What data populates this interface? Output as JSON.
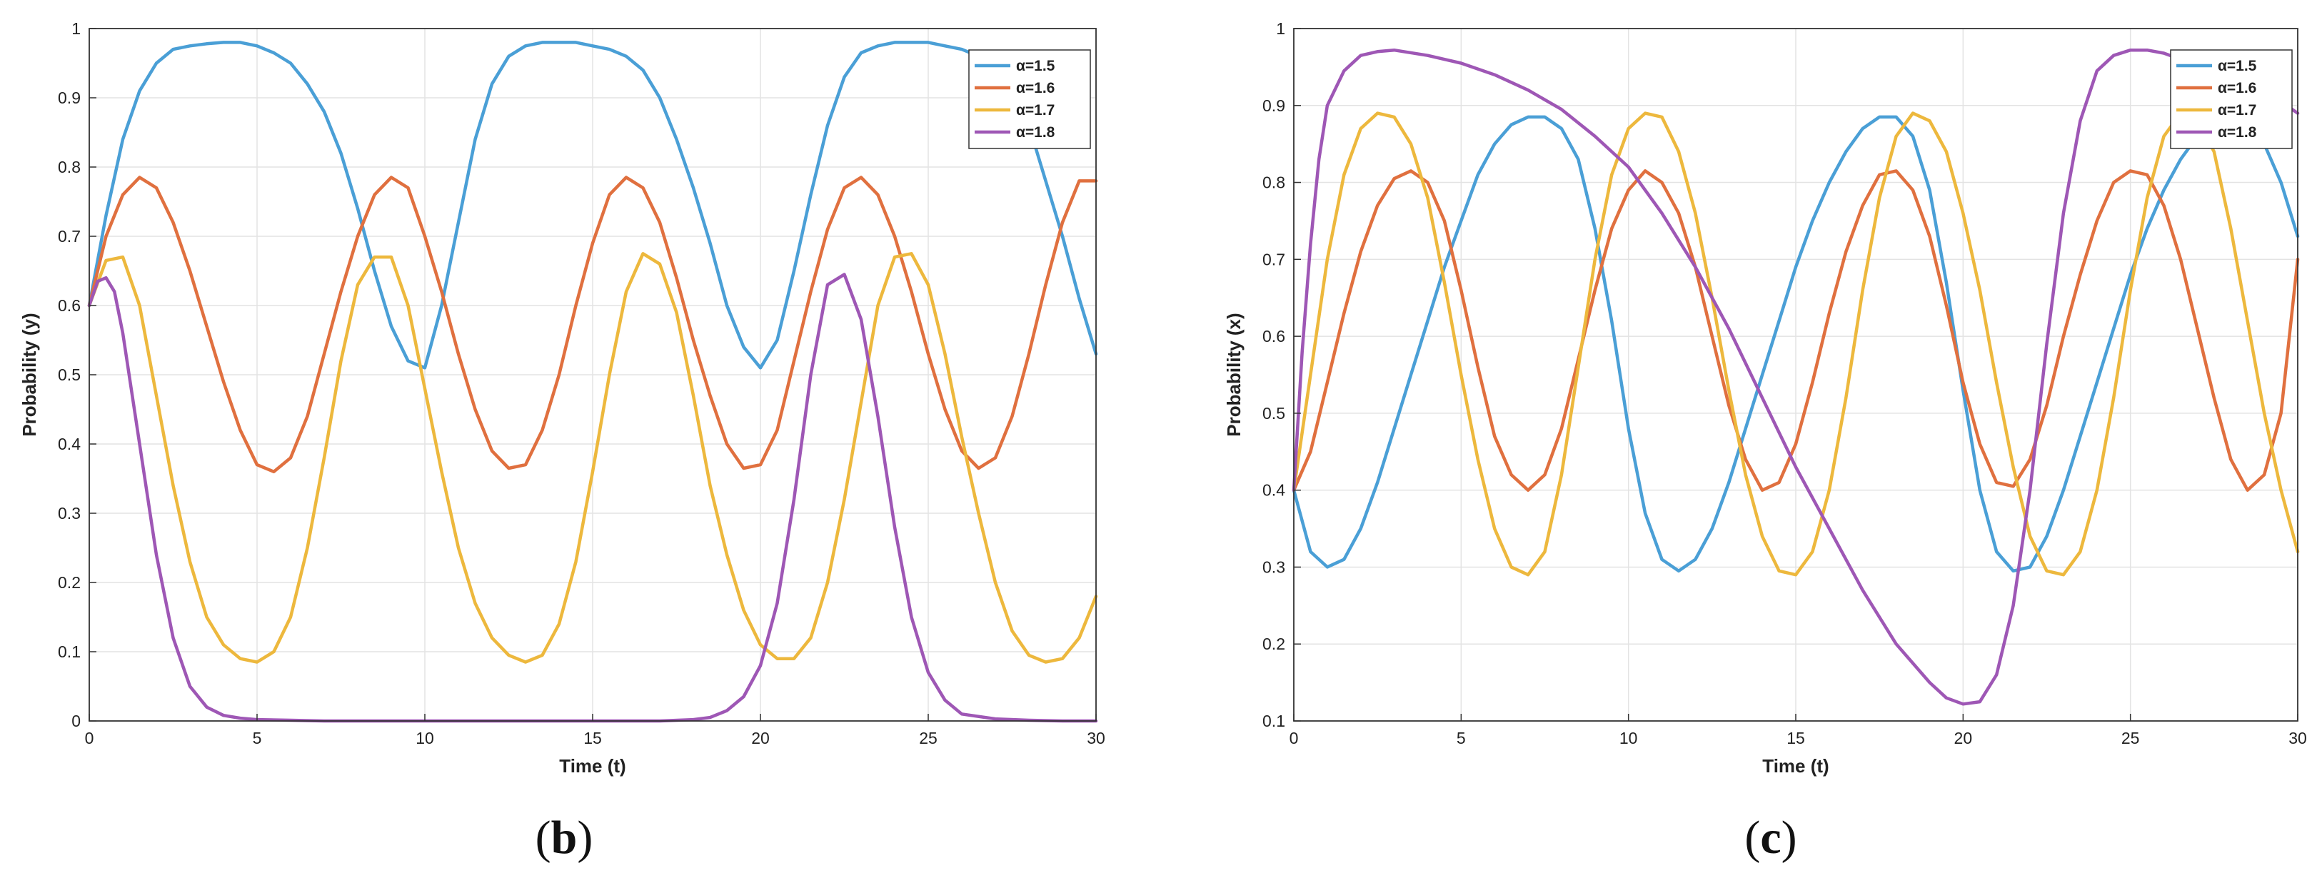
{
  "chart_data": [
    {
      "type": "line",
      "panel_label": {
        "open": "(",
        "letter": "b",
        "close": ")"
      },
      "xlabel": "Time (t)",
      "ylabel": "Probability (y)",
      "xlim": [
        0,
        30
      ],
      "ylim": [
        0,
        1
      ],
      "xticks": [
        0,
        5,
        10,
        15,
        20,
        25,
        30
      ],
      "yticks": [
        0,
        0.1,
        0.2,
        0.3,
        0.4,
        0.5,
        0.6,
        0.7,
        0.8,
        0.9,
        1
      ],
      "grid": true,
      "legend_position": "top-right",
      "series": [
        {
          "name": "α=1.5",
          "color": "#4a9fd6",
          "x": [
            0,
            0.5,
            1,
            1.5,
            2,
            2.5,
            3,
            3.5,
            4,
            4.5,
            5,
            5.5,
            6,
            6.5,
            7,
            7.5,
            8,
            8.5,
            9,
            9.5,
            10,
            10.5,
            11,
            11.5,
            12,
            12.5,
            13,
            13.5,
            14,
            14.5,
            15,
            15.5,
            16,
            16.5,
            17,
            17.5,
            18,
            18.5,
            19,
            19.5,
            20,
            20.5,
            21,
            21.5,
            22,
            22.5,
            23,
            23.5,
            24,
            24.5,
            25,
            25.5,
            26,
            26.5,
            27,
            27.5,
            28,
            28.5,
            29,
            29.5,
            30
          ],
          "y": [
            0.6,
            0.73,
            0.84,
            0.91,
            0.95,
            0.97,
            0.975,
            0.978,
            0.98,
            0.98,
            0.975,
            0.965,
            0.95,
            0.92,
            0.88,
            0.82,
            0.74,
            0.65,
            0.57,
            0.52,
            0.51,
            0.6,
            0.72,
            0.84,
            0.92,
            0.96,
            0.975,
            0.98,
            0.98,
            0.98,
            0.975,
            0.97,
            0.96,
            0.94,
            0.9,
            0.84,
            0.77,
            0.69,
            0.6,
            0.54,
            0.51,
            0.55,
            0.65,
            0.76,
            0.86,
            0.93,
            0.965,
            0.975,
            0.98,
            0.98,
            0.98,
            0.975,
            0.97,
            0.96,
            0.95,
            0.92,
            0.86,
            0.78,
            0.7,
            0.61,
            0.53
          ]
        },
        {
          "name": "α=1.6",
          "color": "#e0703f",
          "x": [
            0,
            0.5,
            1,
            1.5,
            2,
            2.5,
            3,
            3.5,
            4,
            4.5,
            5,
            5.5,
            6,
            6.5,
            7,
            7.5,
            8,
            8.5,
            9,
            9.5,
            10,
            10.5,
            11,
            11.5,
            12,
            12.5,
            13,
            13.5,
            14,
            14.5,
            15,
            15.5,
            16,
            16.5,
            17,
            17.5,
            18,
            18.5,
            19,
            19.5,
            20,
            20.5,
            21,
            21.5,
            22,
            22.5,
            23,
            23.5,
            24,
            24.5,
            25,
            25.5,
            26,
            26.5,
            27,
            27.5,
            28,
            28.5,
            29,
            29.5,
            30
          ],
          "y": [
            0.6,
            0.7,
            0.76,
            0.785,
            0.77,
            0.72,
            0.65,
            0.57,
            0.49,
            0.42,
            0.37,
            0.36,
            0.38,
            0.44,
            0.53,
            0.62,
            0.7,
            0.76,
            0.785,
            0.77,
            0.7,
            0.62,
            0.53,
            0.45,
            0.39,
            0.365,
            0.37,
            0.42,
            0.5,
            0.6,
            0.69,
            0.76,
            0.785,
            0.77,
            0.72,
            0.64,
            0.55,
            0.47,
            0.4,
            0.365,
            0.37,
            0.42,
            0.52,
            0.62,
            0.71,
            0.77,
            0.785,
            0.76,
            0.7,
            0.62,
            0.53,
            0.45,
            0.39,
            0.365,
            0.38,
            0.44,
            0.53,
            0.63,
            0.72,
            0.78,
            0.78
          ]
        },
        {
          "name": "α=1.7",
          "color": "#edb83d",
          "x": [
            0,
            0.5,
            1,
            1.5,
            2,
            2.5,
            3,
            3.5,
            4,
            4.5,
            5,
            5.5,
            6,
            6.5,
            7,
            7.5,
            8,
            8.5,
            9,
            9.5,
            10,
            10.5,
            11,
            11.5,
            12,
            12.5,
            13,
            13.5,
            14,
            14.5,
            15,
            15.5,
            16,
            16.5,
            17,
            17.5,
            18,
            18.5,
            19,
            19.5,
            20,
            20.5,
            21,
            21.5,
            22,
            22.5,
            23,
            23.5,
            24,
            24.5,
            25,
            25.5,
            26,
            26.5,
            27,
            27.5,
            28,
            28.5,
            29,
            29.5,
            30
          ],
          "y": [
            0.6,
            0.665,
            0.67,
            0.6,
            0.47,
            0.34,
            0.23,
            0.15,
            0.11,
            0.09,
            0.085,
            0.1,
            0.15,
            0.25,
            0.38,
            0.52,
            0.63,
            0.67,
            0.67,
            0.6,
            0.48,
            0.36,
            0.25,
            0.17,
            0.12,
            0.095,
            0.085,
            0.095,
            0.14,
            0.23,
            0.36,
            0.5,
            0.62,
            0.675,
            0.66,
            0.59,
            0.47,
            0.34,
            0.24,
            0.16,
            0.11,
            0.09,
            0.09,
            0.12,
            0.2,
            0.32,
            0.46,
            0.6,
            0.67,
            0.675,
            0.63,
            0.53,
            0.41,
            0.3,
            0.2,
            0.13,
            0.095,
            0.085,
            0.09,
            0.12,
            0.18
          ]
        },
        {
          "name": "α=1.8",
          "color": "#9e57b5",
          "x": [
            0,
            0.25,
            0.5,
            0.75,
            1,
            1.5,
            2,
            2.5,
            3,
            3.5,
            4,
            4.5,
            5,
            6,
            7,
            8,
            9,
            10,
            11,
            12,
            13,
            14,
            15,
            16,
            17,
            18,
            18.5,
            19,
            19.5,
            20,
            20.5,
            21,
            21.5,
            22,
            22.5,
            23,
            23.5,
            24,
            24.5,
            25,
            25.5,
            26,
            27,
            28,
            29,
            30
          ],
          "y": [
            0.6,
            0.635,
            0.64,
            0.62,
            0.56,
            0.4,
            0.24,
            0.12,
            0.05,
            0.02,
            0.008,
            0.004,
            0.002,
            0.001,
            0,
            0,
            0,
            0,
            0,
            0,
            0,
            0,
            0,
            0,
            0,
            0.002,
            0.005,
            0.015,
            0.035,
            0.08,
            0.17,
            0.32,
            0.5,
            0.63,
            0.645,
            0.58,
            0.44,
            0.28,
            0.15,
            0.07,
            0.03,
            0.01,
            0.003,
            0.001,
            0,
            0
          ]
        }
      ]
    },
    {
      "type": "line",
      "panel_label": {
        "open": "(",
        "letter": "c",
        "close": ")"
      },
      "xlabel": "Time (t)",
      "ylabel": "Probability (x)",
      "xlim": [
        0,
        30
      ],
      "ylim": [
        0.1,
        1
      ],
      "xticks": [
        0,
        5,
        10,
        15,
        20,
        25,
        30
      ],
      "yticks": [
        0.1,
        0.2,
        0.3,
        0.4,
        0.5,
        0.6,
        0.7,
        0.8,
        0.9,
        1
      ],
      "grid": true,
      "legend_position": "top-right",
      "series": [
        {
          "name": "α=1.5",
          "color": "#4a9fd6",
          "x": [
            0,
            0.5,
            1,
            1.5,
            2,
            2.5,
            3,
            3.5,
            4,
            4.5,
            5,
            5.5,
            6,
            6.5,
            7,
            7.5,
            8,
            8.5,
            9,
            9.5,
            10,
            10.5,
            11,
            11.5,
            12,
            12.5,
            13,
            13.5,
            14,
            14.5,
            15,
            15.5,
            16,
            16.5,
            17,
            17.5,
            18,
            18.5,
            19,
            19.5,
            20,
            20.5,
            21,
            21.5,
            22,
            22.5,
            23,
            23.5,
            24,
            24.5,
            25,
            25.5,
            26,
            26.5,
            27,
            27.5,
            28,
            28.5,
            29,
            29.5,
            30
          ],
          "y": [
            0.4,
            0.32,
            0.3,
            0.31,
            0.35,
            0.41,
            0.48,
            0.55,
            0.62,
            0.69,
            0.75,
            0.81,
            0.85,
            0.875,
            0.885,
            0.885,
            0.87,
            0.83,
            0.74,
            0.62,
            0.48,
            0.37,
            0.31,
            0.295,
            0.31,
            0.35,
            0.41,
            0.48,
            0.55,
            0.62,
            0.69,
            0.75,
            0.8,
            0.84,
            0.87,
            0.885,
            0.885,
            0.86,
            0.79,
            0.67,
            0.53,
            0.4,
            0.32,
            0.295,
            0.3,
            0.34,
            0.4,
            0.47,
            0.54,
            0.61,
            0.68,
            0.74,
            0.79,
            0.83,
            0.86,
            0.88,
            0.885,
            0.875,
            0.85,
            0.8,
            0.73
          ]
        },
        {
          "name": "α=1.6",
          "color": "#e0703f",
          "x": [
            0,
            0.5,
            1,
            1.5,
            2,
            2.5,
            3,
            3.5,
            4,
            4.5,
            5,
            5.5,
            6,
            6.5,
            7,
            7.5,
            8,
            8.5,
            9,
            9.5,
            10,
            10.5,
            11,
            11.5,
            12,
            12.5,
            13,
            13.5,
            14,
            14.5,
            15,
            15.5,
            16,
            16.5,
            17,
            17.5,
            18,
            18.5,
            19,
            19.5,
            20,
            20.5,
            21,
            21.5,
            22,
            22.5,
            23,
            23.5,
            24,
            24.5,
            25,
            25.5,
            26,
            26.5,
            27,
            27.5,
            28,
            28.5,
            29,
            29.5,
            30
          ],
          "y": [
            0.4,
            0.45,
            0.54,
            0.63,
            0.71,
            0.77,
            0.805,
            0.815,
            0.8,
            0.75,
            0.66,
            0.56,
            0.47,
            0.42,
            0.4,
            0.42,
            0.48,
            0.57,
            0.66,
            0.74,
            0.79,
            0.815,
            0.8,
            0.76,
            0.69,
            0.6,
            0.51,
            0.44,
            0.4,
            0.41,
            0.46,
            0.54,
            0.63,
            0.71,
            0.77,
            0.81,
            0.815,
            0.79,
            0.73,
            0.64,
            0.54,
            0.46,
            0.41,
            0.405,
            0.44,
            0.51,
            0.6,
            0.68,
            0.75,
            0.8,
            0.815,
            0.81,
            0.77,
            0.7,
            0.61,
            0.52,
            0.44,
            0.4,
            0.42,
            0.5,
            0.7
          ]
        },
        {
          "name": "α=1.7",
          "color": "#edb83d",
          "x": [
            0,
            0.5,
            1,
            1.5,
            2,
            2.5,
            3,
            3.5,
            4,
            4.5,
            5,
            5.5,
            6,
            6.5,
            7,
            7.5,
            8,
            8.5,
            9,
            9.5,
            10,
            10.5,
            11,
            11.5,
            12,
            12.5,
            13,
            13.5,
            14,
            14.5,
            15,
            15.5,
            16,
            16.5,
            17,
            17.5,
            18,
            18.5,
            19,
            19.5,
            20,
            20.5,
            21,
            21.5,
            22,
            22.5,
            23,
            23.5,
            24,
            24.5,
            25,
            25.5,
            26,
            26.5,
            27,
            27.5,
            28,
            28.5,
            29,
            29.5,
            30
          ],
          "y": [
            0.4,
            0.55,
            0.7,
            0.81,
            0.87,
            0.89,
            0.885,
            0.85,
            0.78,
            0.67,
            0.55,
            0.44,
            0.35,
            0.3,
            0.29,
            0.32,
            0.42,
            0.56,
            0.7,
            0.81,
            0.87,
            0.89,
            0.885,
            0.84,
            0.76,
            0.65,
            0.53,
            0.42,
            0.34,
            0.295,
            0.29,
            0.32,
            0.4,
            0.52,
            0.66,
            0.78,
            0.86,
            0.89,
            0.88,
            0.84,
            0.76,
            0.66,
            0.54,
            0.43,
            0.34,
            0.295,
            0.29,
            0.32,
            0.4,
            0.52,
            0.66,
            0.78,
            0.86,
            0.89,
            0.88,
            0.84,
            0.74,
            0.62,
            0.5,
            0.4,
            0.32
          ]
        },
        {
          "name": "α=1.8",
          "color": "#9e57b5",
          "x": [
            0,
            0.25,
            0.5,
            0.75,
            1,
            1.5,
            2,
            2.5,
            3,
            4,
            5,
            6,
            7,
            8,
            9,
            10,
            11,
            12,
            13,
            14,
            15,
            16,
            17,
            18,
            19,
            19.5,
            20,
            20.5,
            21,
            21.5,
            22,
            22.5,
            23,
            23.5,
            24,
            24.5,
            25,
            25.5,
            26,
            26.5,
            27,
            27.5,
            28,
            28.5,
            29,
            29.5,
            30
          ],
          "y": [
            0.4,
            0.58,
            0.72,
            0.83,
            0.9,
            0.945,
            0.965,
            0.97,
            0.972,
            0.965,
            0.955,
            0.94,
            0.92,
            0.895,
            0.86,
            0.82,
            0.76,
            0.69,
            0.61,
            0.52,
            0.43,
            0.35,
            0.27,
            0.2,
            0.15,
            0.13,
            0.122,
            0.125,
            0.16,
            0.25,
            0.4,
            0.59,
            0.76,
            0.88,
            0.945,
            0.965,
            0.972,
            0.972,
            0.968,
            0.96,
            0.95,
            0.945,
            0.94,
            0.93,
            0.92,
            0.905,
            0.89
          ]
        }
      ]
    }
  ]
}
